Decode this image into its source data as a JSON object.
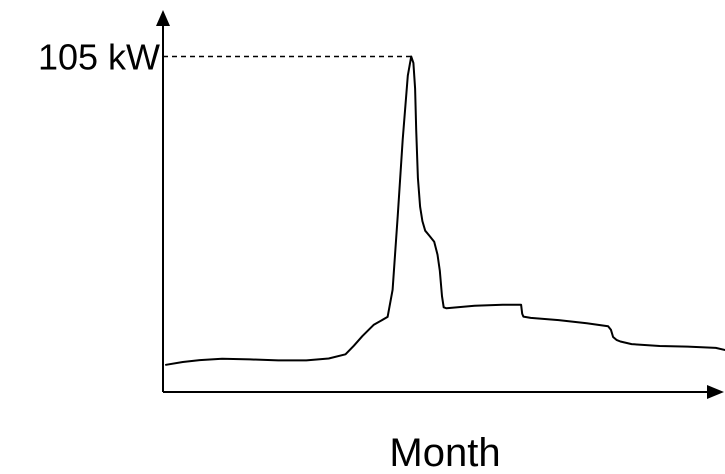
{
  "chart_data": {
    "type": "line",
    "title": "",
    "xlabel": "Month",
    "ylabel": "",
    "y_ticks": [
      {
        "value": 105,
        "label": "105 kW"
      }
    ],
    "reference_lines": [
      {
        "type": "horizontal",
        "value": 105,
        "style": "dashed"
      }
    ],
    "xlim": [
      0,
      100
    ],
    "ylim": [
      0,
      118
    ],
    "grid": false,
    "legend": "none",
    "series": [
      {
        "color": "#000000",
        "x": [
          0,
          3,
          6,
          10,
          15,
          20,
          25,
          29,
          32,
          33.5,
          35,
          37,
          39.5,
          40.4,
          41.3,
          42.2,
          43.1,
          43.7,
          44.1,
          44.4,
          44.6,
          44.9,
          45.3,
          45.7,
          46.2,
          46.9,
          47.8,
          48.4,
          48.8,
          49.2,
          49.5,
          50,
          55,
          60,
          63.3,
          63.5,
          63.7,
          65,
          70,
          75,
          78.8,
          79.3,
          79.7,
          80.3,
          81,
          83,
          88,
          93,
          98,
          100
        ],
        "y": [
          8.5,
          9.4,
          10,
          10.4,
          10.2,
          9.9,
          9.9,
          10.5,
          11.8,
          14.5,
          17.5,
          21,
          23.5,
          32,
          55,
          79,
          99,
          105,
          103,
          95,
          82,
          67,
          58,
          53.5,
          50.5,
          49,
          47,
          43,
          38,
          30,
          26.5,
          26.2,
          27,
          27.3,
          27.3,
          24.5,
          23.6,
          23.2,
          22.5,
          21.5,
          20.6,
          19.5,
          17.2,
          16.3,
          15.8,
          15,
          14.4,
          14.2,
          13.8,
          13
        ]
      }
    ]
  }
}
